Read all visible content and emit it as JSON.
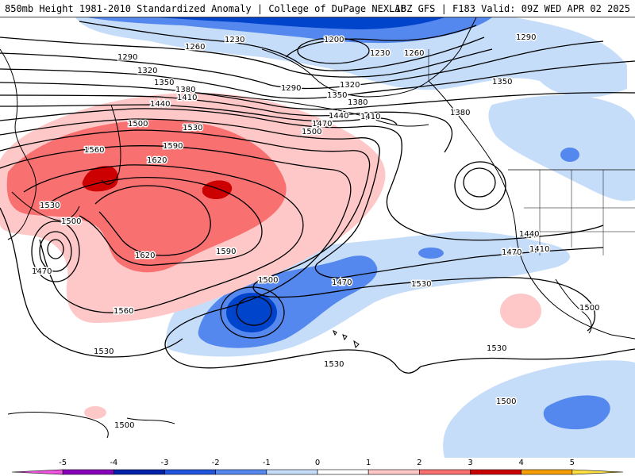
{
  "header": {
    "title_left": "850mb Height 1981-2010 Standardized Anomaly | College of DuPage NEXLAB",
    "title_right": "18Z GFS | F183 Valid: 09Z WED APR 02 2025"
  },
  "legend": {
    "ticks": [
      "-5",
      "-4",
      "-3",
      "-2",
      "-1",
      "0",
      "1",
      "2",
      "3",
      "4",
      "5"
    ],
    "colors": [
      "#ee55dd",
      "#8800bb",
      "#0022aa",
      "#2255dd",
      "#5588ee",
      "#c6ddfa",
      "#ffffff",
      "#ffc8c8",
      "#f87070",
      "#cc0000",
      "#f5a000",
      "#ffe040"
    ]
  },
  "map": {
    "contour_labels": [
      "1200",
      "1230",
      "1230",
      "1260",
      "1260",
      "1290",
      "1290",
      "1290",
      "1320",
      "1320",
      "1350",
      "1350",
      "1350",
      "1380",
      "1380",
      "1380",
      "1410",
      "1410",
      "1410",
      "1440",
      "1440",
      "1440",
      "1470",
      "1470",
      "1470",
      "1470",
      "1500",
      "1500",
      "1500",
      "1500",
      "1500",
      "1500",
      "1500",
      "1530",
      "1530",
      "1530",
      "1530",
      "1530",
      "1530",
      "1560",
      "1560",
      "1590",
      "1590",
      "1620",
      "1620"
    ],
    "fill_colors": {
      "light_red": "#ffc8c8",
      "red": "#f87070",
      "dark_red": "#cc0000",
      "light_blue": "#c6ddfa",
      "blue": "#5588ee",
      "dark_blue": "#0044cc"
    }
  }
}
